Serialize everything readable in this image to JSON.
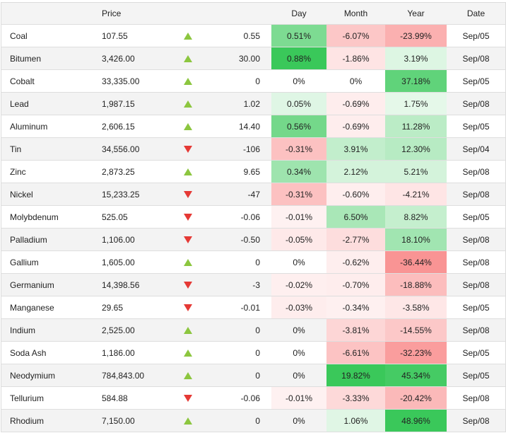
{
  "header": {
    "name": "",
    "price": "Price",
    "arrow": "",
    "change": "",
    "day": "Day",
    "month": "Month",
    "year": "Year",
    "date": "Date"
  },
  "rows": [
    {
      "name": "Coal",
      "price": "107.55",
      "direction": "up",
      "change": "0.55",
      "day": "0.51%",
      "month": "-6.07%",
      "year": "-23.99%",
      "date": "Sep/05"
    },
    {
      "name": "Bitumen",
      "price": "3,426.00",
      "direction": "up",
      "change": "30.00",
      "day": "0.88%",
      "month": "-1.86%",
      "year": "3.19%",
      "date": "Sep/08"
    },
    {
      "name": "Cobalt",
      "price": "33,335.00",
      "direction": "up",
      "change": "0",
      "day": "0%",
      "month": "0%",
      "year": "37.18%",
      "date": "Sep/05"
    },
    {
      "name": "Lead",
      "price": "1,987.15",
      "direction": "up",
      "change": "1.02",
      "day": "0.05%",
      "month": "-0.69%",
      "year": "1.75%",
      "date": "Sep/08"
    },
    {
      "name": "Aluminum",
      "price": "2,606.15",
      "direction": "up",
      "change": "14.40",
      "day": "0.56%",
      "month": "-0.69%",
      "year": "11.28%",
      "date": "Sep/05"
    },
    {
      "name": "Tin",
      "price": "34,556.00",
      "direction": "down",
      "change": "-106",
      "day": "-0.31%",
      "month": "3.91%",
      "year": "12.30%",
      "date": "Sep/04"
    },
    {
      "name": "Zinc",
      "price": "2,873.25",
      "direction": "up",
      "change": "9.65",
      "day": "0.34%",
      "month": "2.12%",
      "year": "5.21%",
      "date": "Sep/08"
    },
    {
      "name": "Nickel",
      "price": "15,233.25",
      "direction": "down",
      "change": "-47",
      "day": "-0.31%",
      "month": "-0.60%",
      "year": "-4.21%",
      "date": "Sep/08"
    },
    {
      "name": "Molybdenum",
      "price": "525.05",
      "direction": "down",
      "change": "-0.06",
      "day": "-0.01%",
      "month": "6.50%",
      "year": "8.82%",
      "date": "Sep/05"
    },
    {
      "name": "Palladium",
      "price": "1,106.00",
      "direction": "down",
      "change": "-0.50",
      "day": "-0.05%",
      "month": "-2.77%",
      "year": "18.10%",
      "date": "Sep/08"
    },
    {
      "name": "Gallium",
      "price": "1,605.00",
      "direction": "up",
      "change": "0",
      "day": "0%",
      "month": "-0.62%",
      "year": "-36.44%",
      "date": "Sep/08"
    },
    {
      "name": "Germanium",
      "price": "14,398.56",
      "direction": "down",
      "change": "-3",
      "day": "-0.02%",
      "month": "-0.70%",
      "year": "-18.88%",
      "date": "Sep/08"
    },
    {
      "name": "Manganese",
      "price": "29.65",
      "direction": "down",
      "change": "-0.01",
      "day": "-0.03%",
      "month": "-0.34%",
      "year": "-3.58%",
      "date": "Sep/05"
    },
    {
      "name": "Indium",
      "price": "2,525.00",
      "direction": "up",
      "change": "0",
      "day": "0%",
      "month": "-3.81%",
      "year": "-14.55%",
      "date": "Sep/08"
    },
    {
      "name": "Soda Ash",
      "price": "1,186.00",
      "direction": "up",
      "change": "0",
      "day": "0%",
      "month": "-6.61%",
      "year": "-32.23%",
      "date": "Sep/05"
    },
    {
      "name": "Neodymium",
      "price": "784,843.00",
      "direction": "up",
      "change": "0",
      "day": "0%",
      "month": "19.82%",
      "year": "45.34%",
      "date": "Sep/05"
    },
    {
      "name": "Tellurium",
      "price": "584.88",
      "direction": "down",
      "change": "-0.06",
      "day": "-0.01%",
      "month": "-3.33%",
      "year": "-20.42%",
      "date": "Sep/08"
    },
    {
      "name": "Rhodium",
      "price": "7,150.00",
      "direction": "up",
      "change": "0",
      "day": "0%",
      "month": "1.06%",
      "year": "48.96%",
      "date": "Sep/08"
    }
  ],
  "colors": {
    "up_arrow": "#8cc63f",
    "down_arrow": "#e53935",
    "header_bg": "#f4f4f4",
    "stripe_bg": "#f3f3f3"
  }
}
